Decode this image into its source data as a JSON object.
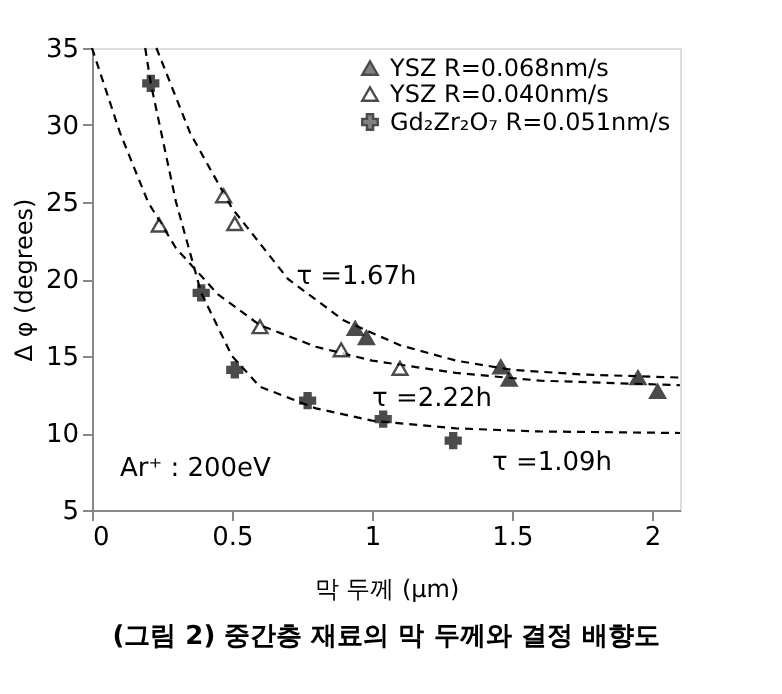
{
  "chart_data": {
    "type": "scatter",
    "title": "(그림 2) 중간층 재료의 막 두께와 결정 배향도",
    "xlabel": "막 두께 (μm)",
    "ylabel": "Δ φ (degrees)",
    "xlim": [
      0,
      2.1
    ],
    "ylim": [
      5,
      35
    ],
    "xticks": [
      {
        "value": 0,
        "label": "0"
      },
      0.5,
      {
        "value": 1,
        "label": "1"
      },
      1.5,
      {
        "value": 2,
        "label": "2"
      }
    ],
    "yticks": [
      5,
      10,
      15,
      20,
      25,
      30,
      35
    ],
    "grid": false,
    "legend": "top right",
    "series": [
      {
        "name": "YSZ R=0.068nm/s",
        "marker": "triangle",
        "color": "#000000",
        "x": [
          0.94,
          0.98,
          1.46,
          1.49,
          1.95,
          2.02
        ],
        "values": [
          16.8,
          16.2,
          14.3,
          13.5,
          13.6,
          12.7
        ]
      },
      {
        "name": "YSZ R=0.040nm/s",
        "marker": "triangle",
        "color": "#000000",
        "x": [
          0.24,
          0.47,
          0.51,
          0.6,
          0.89,
          1.1
        ],
        "values": [
          23.5,
          25.4,
          23.6,
          16.9,
          15.4,
          14.2
        ]
      },
      {
        "name": "Gd₂Zr₂O₇ R=0.051nm/s",
        "marker": "cross",
        "color": "#000000",
        "x": [
          0.21,
          0.39,
          0.51,
          0.77,
          1.04,
          1.29
        ],
        "values": [
          32.7,
          19.1,
          14.1,
          12.1,
          10.9,
          9.5
        ]
      },
      {
        "type": "line",
        "line_style": "dashed",
        "marker": "none",
        "color": "#000000",
        "x": [
          0.23,
          0.35,
          0.5,
          0.7,
          0.9,
          1.1,
          1.3,
          1.5,
          1.75,
          2.1
        ],
        "values": [
          35,
          29.5,
          24.6,
          20,
          17.3,
          15.7,
          14.7,
          14.1,
          13.8,
          13.6
        ]
      },
      {
        "type": "line",
        "line_style": "dashed",
        "marker": "none",
        "color": "#000000",
        "x": [
          0,
          0.1,
          0.2,
          0.3,
          0.45,
          0.6,
          0.8,
          1,
          1.3,
          1.6,
          2.1
        ],
        "values": [
          35,
          29.5,
          25,
          22,
          19,
          17,
          15.6,
          14.7,
          13.9,
          13.4,
          13.1
        ]
      },
      {
        "type": "line",
        "line_style": "dashed",
        "marker": "none",
        "color": "#000000",
        "x": [
          0.19,
          0.21,
          0.3,
          0.39,
          0.5,
          0.6,
          0.8,
          1,
          1.3,
          1.6,
          2.1
        ],
        "values": [
          35,
          32.7,
          25,
          19.1,
          15,
          13,
          11.6,
          10.8,
          10.3,
          10.1,
          10
        ]
      }
    ],
    "annotations": [
      {
        "text": "τ =1.67h",
        "x": 0.73,
        "y": 20.2
      },
      "τ =2.22h",
      "τ =1.09h",
      "Ar⁺ : 200eV"
    ]
  }
}
